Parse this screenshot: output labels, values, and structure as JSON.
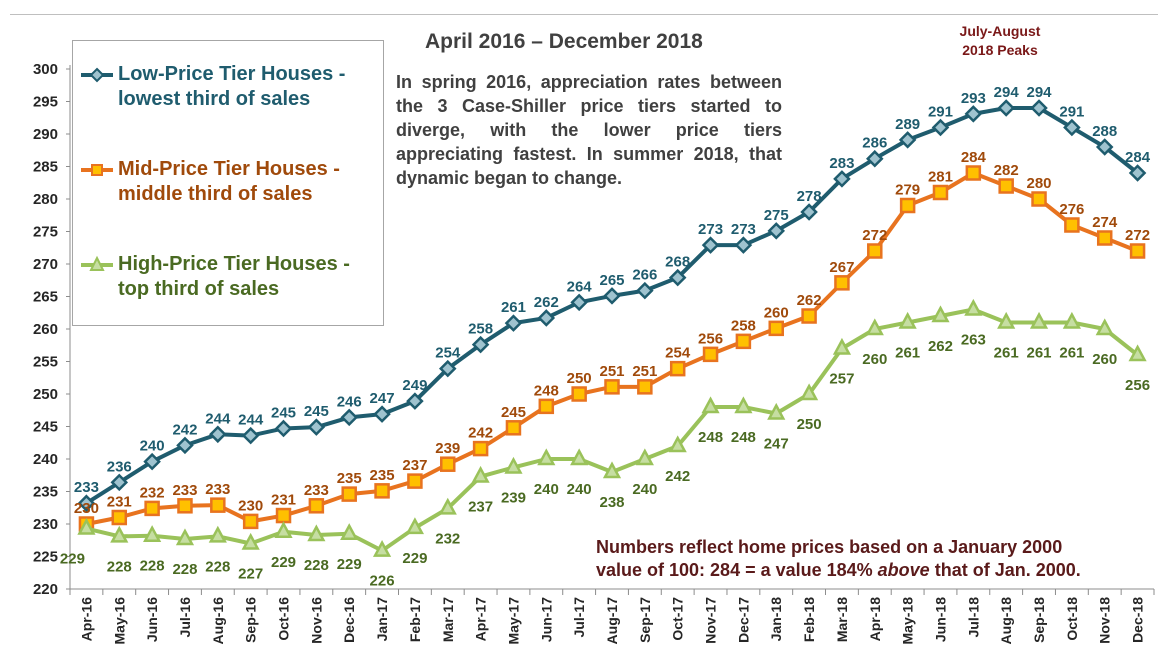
{
  "chart_data": {
    "type": "line",
    "title": "April 2016 – December 2018",
    "annotation_peak": [
      "July-August",
      "2018 Peaks"
    ],
    "description": "In spring 2016, appreciation rates between the 3 Case-Shiller price tiers started to diverge, with the lower price tiers appreciating fastest. In summer 2018, that dynamic began to change.",
    "footnote": {
      "line1": "Numbers reflect home prices based on a January 2000",
      "line2_pre": "value of 100: 284 = a value 184% ",
      "line2_em": "above",
      "line2_post": " that of Jan. 2000."
    },
    "ylim": [
      220,
      300
    ],
    "yticks": [
      220,
      225,
      230,
      235,
      240,
      245,
      250,
      255,
      260,
      265,
      270,
      275,
      280,
      285,
      290,
      295,
      300
    ],
    "grid": false,
    "legend_position": "top-left",
    "categories": [
      "Apr-16",
      "May-16",
      "Jun-16",
      "Jul-16",
      "Aug-16",
      "Sep-16",
      "Oct-16",
      "Nov-16",
      "Dec-16",
      "Jan-17",
      "Feb-17",
      "Mar-17",
      "Apr-17",
      "May-17",
      "Jun-17",
      "Jul-17",
      "Aug-17",
      "Sep-17",
      "Oct-17",
      "Nov-17",
      "Dec-17",
      "Jan-18",
      "Feb-18",
      "Mar-18",
      "Apr-18",
      "May-18",
      "Jun-18",
      "Jul-18",
      "Aug-18",
      "Sep-18",
      "Oct-18",
      "Nov-18",
      "Dec-18"
    ],
    "series": [
      {
        "name_line1": "Low-Price Tier Houses  -",
        "name_line2": "lowest third of sales",
        "color": "#1f5c6e",
        "label_color": "#1f5c6e",
        "marker": "diamond",
        "values": [
          233.2,
          236.4,
          239.6,
          242.1,
          243.8,
          243.6,
          244.7,
          244.9,
          246.4,
          246.9,
          248.9,
          253.9,
          257.6,
          260.9,
          261.7,
          264.1,
          265.1,
          265.9,
          267.9,
          272.9,
          272.9,
          275.1,
          278.0,
          283.1,
          286.2,
          289.1,
          291.0,
          293.1,
          294.0,
          294.0,
          291.0,
          288.0,
          284.0
        ],
        "labels": [
          "233",
          "236",
          "240",
          "242",
          "244",
          "244",
          "245",
          "245",
          "246",
          "247",
          "249",
          "254",
          "258",
          "261",
          "262",
          "264",
          "265",
          "266",
          "268",
          "273",
          "273",
          "275",
          "278",
          "283",
          "286",
          "289",
          "291",
          "293",
          "294",
          "294",
          "291",
          "288",
          "284"
        ]
      },
      {
        "name_line1": "Mid-Price Tier Houses  -",
        "name_line2": "middle third of sales",
        "color": "#e8731f",
        "label_color": "#a04a0b",
        "marker": "square",
        "values": [
          230.0,
          231.0,
          232.4,
          232.8,
          232.9,
          230.4,
          231.3,
          232.8,
          234.6,
          235.1,
          236.6,
          239.2,
          241.6,
          244.8,
          248.1,
          250.0,
          251.1,
          251.1,
          253.9,
          256.1,
          258.1,
          260.1,
          262.0,
          267.1,
          272.0,
          279.0,
          281.0,
          284.0,
          282.0,
          280.0,
          276.0,
          274.0,
          272.0
        ],
        "labels": [
          "230",
          "231",
          "232",
          "233",
          "233",
          "230",
          "231",
          "233",
          "235",
          "235",
          "237",
          "239",
          "242",
          "245",
          "248",
          "250",
          "251",
          "251",
          "254",
          "256",
          "258",
          "260",
          "262",
          "267",
          "272",
          "279",
          "281",
          "284",
          "282",
          "280",
          "276",
          "274",
          "272"
        ]
      },
      {
        "name_line1": "High-Price Tier Houses -",
        "name_line2": "top third of sales",
        "color": "#9ac25a",
        "label_color": "#4a6a22",
        "marker": "triangle",
        "values": [
          229.3,
          228.1,
          228.2,
          227.7,
          228.1,
          227.0,
          228.8,
          228.3,
          228.5,
          225.9,
          229.4,
          232.4,
          237.3,
          238.7,
          240.0,
          240.0,
          238.0,
          240.0,
          242.0,
          248.0,
          248.0,
          247.0,
          250.0,
          257.0,
          260.0,
          261.0,
          262.0,
          263.0,
          261.0,
          261.0,
          261.0,
          260.0,
          256.0
        ],
        "labels": [
          "229",
          "228",
          "228",
          "228",
          "228",
          "227",
          "229",
          "228",
          "229",
          "226",
          "229",
          "232",
          "237",
          "239",
          "240",
          "240",
          "238",
          "240",
          "242",
          "248",
          "248",
          "247",
          "250",
          "257",
          "260",
          "261",
          "262",
          "263",
          "261",
          "261",
          "261",
          "260",
          "256"
        ]
      }
    ]
  }
}
